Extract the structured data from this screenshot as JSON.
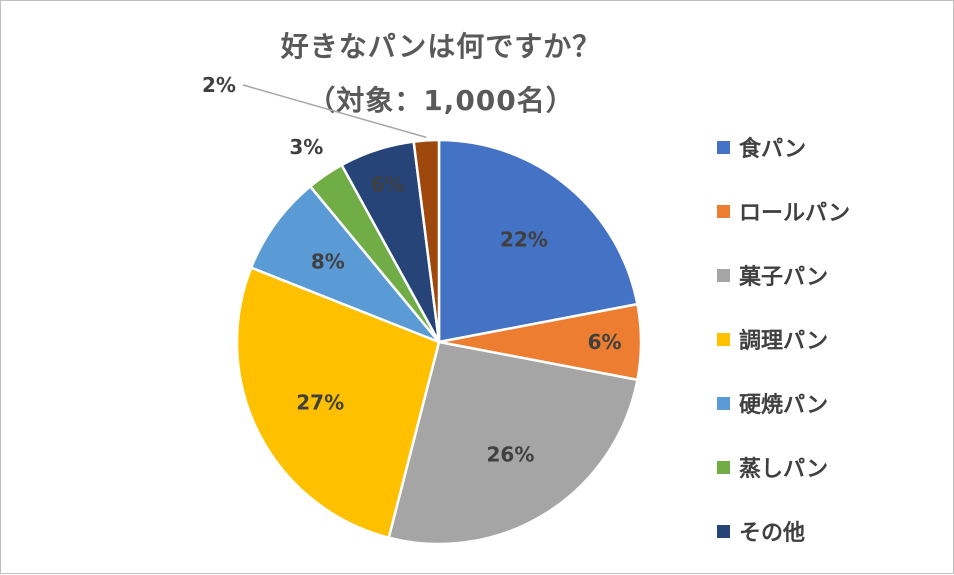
{
  "chart_data": {
    "type": "pie",
    "title_line1": "好きなパンは何ですか？",
    "title_line2": "（対象：1,000名）",
    "categories": [
      "食パン",
      "ロールパン",
      "菓子パン",
      "調理パン",
      "硬焼パン",
      "蒸しパン",
      "その他",
      ""
    ],
    "values": [
      22,
      6,
      26,
      27,
      8,
      3,
      6,
      2
    ],
    "labels": [
      "22%",
      "6%",
      "26%",
      "27%",
      "8%",
      "3%",
      "6%",
      "2%"
    ],
    "colors": [
      "#4472c4",
      "#ed7d31",
      "#a5a5a5",
      "#ffc000",
      "#5b9bd5",
      "#70ad47",
      "#264478",
      "#9e480e"
    ],
    "legend_position": "right",
    "legend": [
      "食パン",
      "ロールパン",
      "菓子パン",
      "調理パン",
      "硬焼パン",
      "蒸しパン",
      "その他"
    ]
  }
}
